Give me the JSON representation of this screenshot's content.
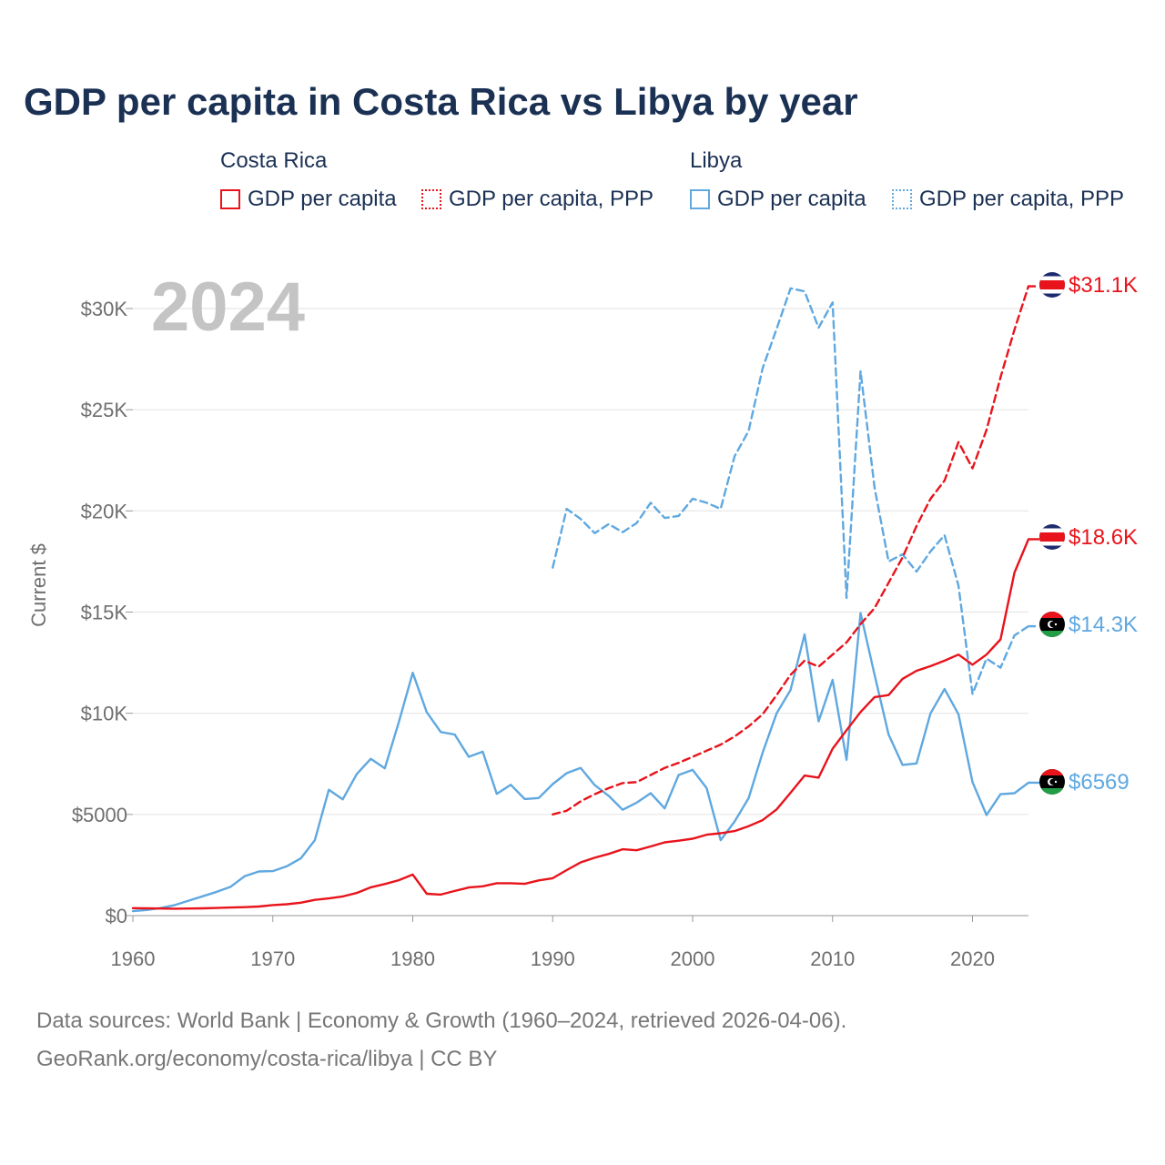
{
  "title": "GDP per capita in Costa Rica vs Libya by year",
  "legend": {
    "groups": [
      {
        "label": "Costa Rica",
        "color": "#e8131b",
        "items": [
          {
            "label": "GDP per capita",
            "style": "solid"
          },
          {
            "label": "GDP per capita, PPP",
            "style": "dotted"
          }
        ]
      },
      {
        "label": "Libya",
        "color": "#5fa8e0",
        "items": [
          {
            "label": "GDP per capita",
            "style": "solid"
          },
          {
            "label": "GDP per capita, PPP",
            "style": "dotted"
          }
        ]
      }
    ]
  },
  "year_watermark": "2024",
  "footer": {
    "line1": "Data sources: World Bank | Economy & Growth (1960–2024, retrieved 2026-04-06).",
    "line2": "GeoRank.org/economy/costa-rica/libya | CC BY"
  },
  "chart_data": {
    "type": "line",
    "title": "GDP per capita in Costa Rica vs Libya by year",
    "xlabel": "",
    "ylabel": "Current $",
    "xlim": [
      1960,
      2024
    ],
    "ylim": [
      0,
      32000
    ],
    "x_ticks": [
      1960,
      1970,
      1980,
      1990,
      2000,
      2010,
      2020
    ],
    "x_tick_labels": [
      "1960",
      "1970",
      "1980",
      "1990",
      "2000",
      "2010",
      "2020"
    ],
    "y_ticks": [
      0,
      5000,
      10000,
      15000,
      20000,
      25000,
      30000
    ],
    "y_tick_labels": [
      "$0",
      "$5000",
      "$10K",
      "$15K",
      "$20K",
      "$25K",
      "$30K"
    ],
    "grid": true,
    "series": [
      {
        "name": "Costa Rica – GDP per capita",
        "country": "Costa Rica",
        "indicator": "GDP per capita",
        "color": "#e8131b",
        "dash": "solid",
        "end_label": "$18.6K",
        "flag": "costa-rica",
        "x": [
          1960,
          1961,
          1962,
          1963,
          1964,
          1965,
          1966,
          1967,
          1968,
          1969,
          1970,
          1971,
          1972,
          1973,
          1974,
          1975,
          1976,
          1977,
          1978,
          1979,
          1980,
          1981,
          1982,
          1983,
          1984,
          1985,
          1986,
          1987,
          1988,
          1989,
          1990,
          1991,
          1992,
          1993,
          1994,
          1995,
          1996,
          1997,
          1998,
          1999,
          2000,
          2001,
          2002,
          2003,
          2004,
          2005,
          2006,
          2007,
          2008,
          2009,
          2010,
          2011,
          2012,
          2013,
          2014,
          2015,
          2016,
          2017,
          2018,
          2019,
          2020,
          2021,
          2022,
          2023,
          2024
        ],
        "values": [
          370,
          360,
          350,
          340,
          350,
          360,
          380,
          400,
          420,
          450,
          520,
          560,
          640,
          780,
          850,
          950,
          1120,
          1400,
          1560,
          1750,
          2030,
          1080,
          1040,
          1220,
          1390,
          1450,
          1600,
          1600,
          1570,
          1740,
          1850,
          2250,
          2630,
          2860,
          3050,
          3280,
          3230,
          3420,
          3620,
          3700,
          3800,
          4000,
          4070,
          4180,
          4420,
          4720,
          5250,
          6070,
          6920,
          6820,
          8250,
          9160,
          10060,
          10800,
          10900,
          11700,
          12100,
          12330,
          12600,
          12900,
          12400,
          12900,
          13650,
          16950,
          18600
        ]
      },
      {
        "name": "Costa Rica – GDP per capita, PPP",
        "country": "Costa Rica",
        "indicator": "GDP per capita, PPP",
        "color": "#e8131b",
        "dash": "dashed",
        "end_label": "$31.1K",
        "flag": "costa-rica",
        "x": [
          1990,
          1991,
          1992,
          1993,
          1994,
          1995,
          1996,
          1997,
          1998,
          1999,
          2000,
          2001,
          2002,
          2003,
          2004,
          2005,
          2006,
          2007,
          2008,
          2009,
          2010,
          2011,
          2012,
          2013,
          2014,
          2015,
          2016,
          2017,
          2018,
          2019,
          2020,
          2021,
          2022,
          2023,
          2024
        ],
        "values": [
          5000,
          5180,
          5650,
          6000,
          6300,
          6550,
          6600,
          6950,
          7300,
          7550,
          7850,
          8150,
          8450,
          8850,
          9350,
          9950,
          10900,
          11900,
          12600,
          12300,
          12900,
          13500,
          14400,
          15200,
          16450,
          17700,
          19250,
          20600,
          21500,
          23400,
          22100,
          24000,
          26600,
          28950,
          31100
        ]
      },
      {
        "name": "Libya – GDP per capita",
        "country": "Libya",
        "indicator": "GDP per capita",
        "color": "#5fa8e0",
        "dash": "solid",
        "end_label": "$6569",
        "flag": "libya",
        "x": [
          1960,
          1961,
          1962,
          1963,
          1964,
          1965,
          1966,
          1967,
          1968,
          1969,
          1970,
          1971,
          1972,
          1973,
          1974,
          1975,
          1976,
          1977,
          1978,
          1979,
          1980,
          1981,
          1982,
          1983,
          1984,
          1985,
          1986,
          1987,
          1988,
          1989,
          1990,
          1991,
          1992,
          1993,
          1994,
          1995,
          1996,
          1997,
          1998,
          1999,
          2000,
          2001,
          2002,
          2003,
          2004,
          2005,
          2006,
          2007,
          2008,
          2009,
          2010,
          2011,
          2012,
          2013,
          2014,
          2015,
          2016,
          2017,
          2018,
          2019,
          2020,
          2021,
          2022,
          2023,
          2024
        ],
        "values": [
          220,
          280,
          380,
          520,
          740,
          960,
          1180,
          1430,
          1950,
          2180,
          2200,
          2440,
          2830,
          3730,
          6220,
          5750,
          7000,
          7750,
          7280,
          9550,
          12000,
          10050,
          9070,
          8950,
          7850,
          8100,
          6020,
          6470,
          5760,
          5810,
          6500,
          7040,
          7300,
          6450,
          5920,
          5230,
          5580,
          6050,
          5300,
          6950,
          7200,
          6300,
          3730,
          4650,
          5800,
          8050,
          10000,
          11150,
          13900,
          9600,
          11650,
          7700,
          14950,
          11900,
          8950,
          7450,
          7520,
          10000,
          11200,
          9950,
          6600,
          4970,
          6000,
          6050,
          6569
        ]
      },
      {
        "name": "Libya – GDP per capita, PPP",
        "country": "Libya",
        "indicator": "GDP per capita, PPP",
        "color": "#5fa8e0",
        "dash": "dashed",
        "end_label": "$14.3K",
        "flag": "libya",
        "x": [
          1990,
          1991,
          1992,
          1993,
          1994,
          1995,
          1996,
          1997,
          1998,
          1999,
          2000,
          2001,
          2002,
          2003,
          2004,
          2005,
          2006,
          2007,
          2008,
          2009,
          2010,
          2011,
          2012,
          2013,
          2014,
          2015,
          2016,
          2017,
          2018,
          2019,
          2020,
          2021,
          2022,
          2023,
          2024
        ],
        "values": [
          17200,
          20100,
          19600,
          18900,
          19350,
          18950,
          19400,
          20400,
          19650,
          19750,
          20600,
          20400,
          20100,
          22700,
          23950,
          27050,
          29000,
          31000,
          30850,
          29050,
          30300,
          15700,
          26900,
          21150,
          17500,
          17850,
          17000,
          18000,
          18800,
          16300,
          10950,
          12700,
          12250,
          13850,
          14300
        ]
      }
    ]
  }
}
